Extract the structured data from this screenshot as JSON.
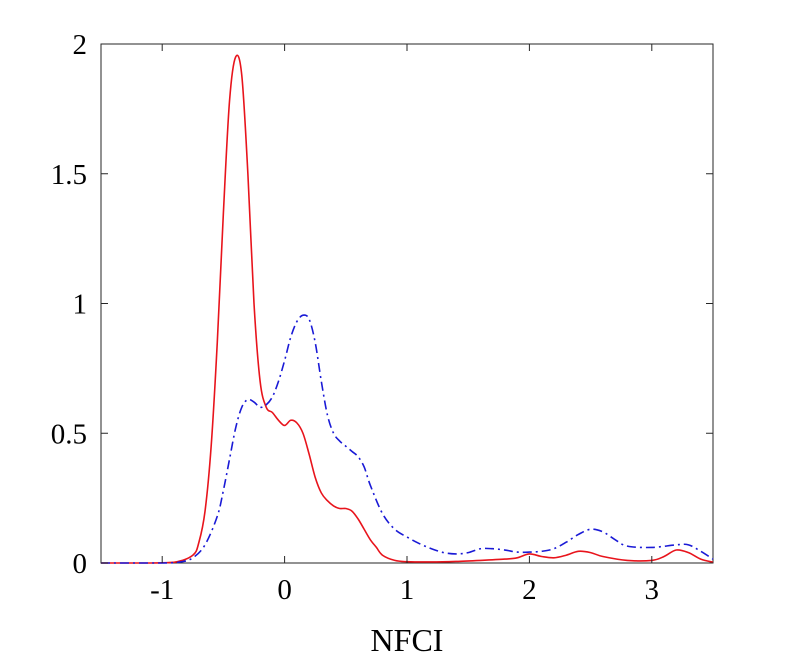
{
  "chart_data": {
    "type": "line",
    "title": "",
    "xlabel": "NFCI",
    "ylabel": "",
    "xlim": [
      -1.5,
      3.5
    ],
    "ylim": [
      0,
      2
    ],
    "grid": false,
    "legend": "none",
    "xticks": [
      -1,
      0,
      1,
      2,
      3
    ],
    "xtick_labels": [
      "-1",
      "0",
      "1",
      "2",
      "3"
    ],
    "yticks": [
      0,
      0.5,
      1,
      1.5,
      2
    ],
    "ytick_labels": [
      "0",
      "0.5",
      "1",
      "1.5",
      "2"
    ],
    "series": [
      {
        "color": "#e8141c",
        "dash": "solid",
        "x": [
          -1.5,
          -1.1,
          -0.9,
          -0.75,
          -0.7,
          -0.65,
          -0.6,
          -0.55,
          -0.5,
          -0.45,
          -0.4,
          -0.35,
          -0.3,
          -0.25,
          -0.2,
          -0.15,
          -0.1,
          -0.05,
          0.0,
          0.05,
          0.1,
          0.15,
          0.2,
          0.25,
          0.3,
          0.35,
          0.4,
          0.45,
          0.5,
          0.55,
          0.6,
          0.65,
          0.7,
          0.75,
          0.8,
          0.9,
          1.0,
          1.2,
          1.4,
          1.6,
          1.8,
          1.9,
          2.0,
          2.1,
          2.2,
          2.3,
          2.4,
          2.5,
          2.6,
          2.8,
          3.0,
          3.1,
          3.2,
          3.3,
          3.4,
          3.5
        ],
        "y": [
          0.0,
          0.0,
          0.003,
          0.03,
          0.08,
          0.2,
          0.45,
          0.85,
          1.35,
          1.78,
          1.95,
          1.88,
          1.5,
          1.0,
          0.7,
          0.6,
          0.58,
          0.55,
          0.53,
          0.55,
          0.54,
          0.5,
          0.42,
          0.33,
          0.27,
          0.24,
          0.22,
          0.21,
          0.21,
          0.2,
          0.17,
          0.13,
          0.09,
          0.06,
          0.03,
          0.01,
          0.005,
          0.004,
          0.006,
          0.01,
          0.015,
          0.02,
          0.035,
          0.025,
          0.02,
          0.03,
          0.045,
          0.04,
          0.025,
          0.01,
          0.01,
          0.025,
          0.05,
          0.04,
          0.015,
          0.003
        ]
      },
      {
        "color": "#1a1ad6",
        "dash": "dashdot",
        "x": [
          -1.5,
          -1.0,
          -0.85,
          -0.75,
          -0.65,
          -0.55,
          -0.5,
          -0.45,
          -0.4,
          -0.35,
          -0.3,
          -0.25,
          -0.2,
          -0.15,
          -0.1,
          -0.05,
          0.0,
          0.05,
          0.1,
          0.15,
          0.2,
          0.25,
          0.3,
          0.35,
          0.4,
          0.45,
          0.5,
          0.55,
          0.6,
          0.65,
          0.7,
          0.8,
          0.9,
          1.0,
          1.1,
          1.2,
          1.3,
          1.4,
          1.5,
          1.6,
          1.7,
          1.8,
          1.9,
          2.0,
          2.1,
          2.2,
          2.3,
          2.4,
          2.5,
          2.6,
          2.7,
          2.8,
          3.0,
          3.2,
          3.3,
          3.4,
          3.5
        ],
        "y": [
          0.0,
          0.0,
          0.004,
          0.02,
          0.07,
          0.18,
          0.28,
          0.4,
          0.52,
          0.6,
          0.63,
          0.62,
          0.6,
          0.61,
          0.64,
          0.7,
          0.78,
          0.87,
          0.93,
          0.955,
          0.94,
          0.85,
          0.7,
          0.57,
          0.5,
          0.47,
          0.45,
          0.43,
          0.41,
          0.37,
          0.3,
          0.19,
          0.13,
          0.1,
          0.075,
          0.055,
          0.04,
          0.035,
          0.04,
          0.055,
          0.055,
          0.05,
          0.042,
          0.042,
          0.045,
          0.055,
          0.08,
          0.11,
          0.13,
          0.12,
          0.09,
          0.065,
          0.06,
          0.07,
          0.07,
          0.045,
          0.015
        ]
      }
    ]
  }
}
